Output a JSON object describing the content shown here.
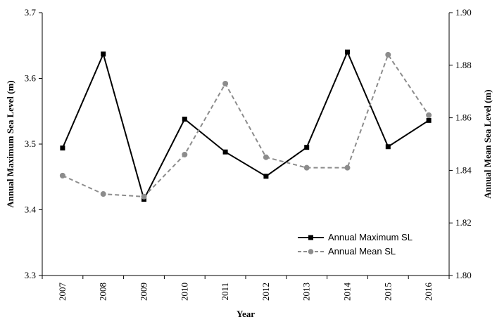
{
  "chart_data": {
    "type": "line",
    "x": [
      "2007",
      "2008",
      "2009",
      "2010",
      "2011",
      "2012",
      "2013",
      "2014",
      "2015",
      "2016"
    ],
    "xlabel": "Year",
    "ylabel_left": "Annual Maximum Sea Level (m)",
    "ylabel_right": "Annual Mean Sea Level (m)",
    "ylim_left": [
      3.3,
      3.7
    ],
    "ylim_right": [
      1.8,
      1.9
    ],
    "yticks_left": [
      "3.3",
      "3.4",
      "3.5",
      "3.6",
      "3.7"
    ],
    "yticks_right": [
      "1.80",
      "1.82",
      "1.84",
      "1.86",
      "1.88",
      "1.90"
    ],
    "grid": false,
    "legend_position": "bottom-right",
    "series": [
      {
        "name": "Annual Maximum SL",
        "axis": "left",
        "color": "#000000",
        "line_style": "solid",
        "marker": "square",
        "values": [
          3.494,
          3.637,
          3.416,
          3.538,
          3.488,
          3.451,
          3.495,
          3.64,
          3.496,
          3.536
        ]
      },
      {
        "name": "Annual Mean SL",
        "axis": "right",
        "color": "#8c8c8c",
        "line_style": "dashed",
        "marker": "circle",
        "values": [
          1.838,
          1.831,
          1.83,
          1.846,
          1.873,
          1.845,
          1.841,
          1.841,
          1.884,
          1.861
        ]
      }
    ]
  }
}
